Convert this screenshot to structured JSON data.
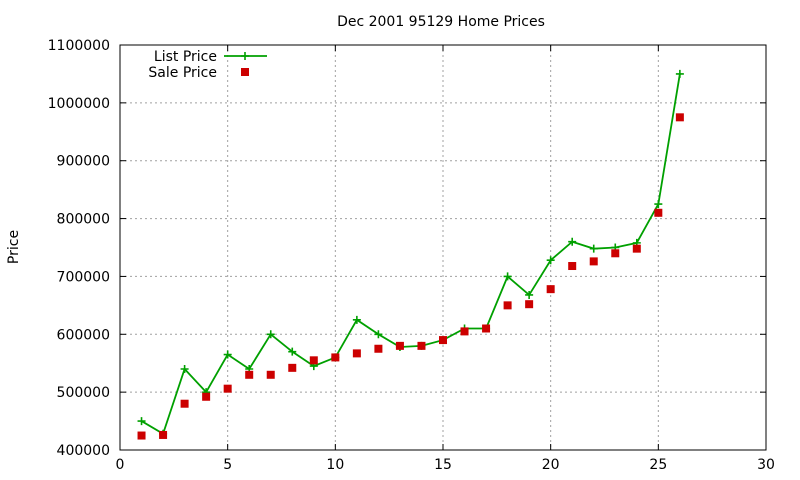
{
  "chart_data": {
    "type": "line",
    "title": "Dec 2001 95129 Home Prices",
    "xlabel": "",
    "ylabel": "Price",
    "xlim": [
      0,
      30
    ],
    "ylim": [
      400000,
      1100000
    ],
    "xticks": [
      0,
      5,
      10,
      15,
      20,
      25,
      30
    ],
    "yticks": [
      400000,
      500000,
      600000,
      700000,
      800000,
      900000,
      1000000,
      1100000
    ],
    "grid": true,
    "legend_position": "top-left",
    "series": [
      {
        "name": "List Price",
        "style": "linespoints",
        "marker": "plus",
        "color": "#00a000",
        "x": [
          1,
          2,
          3,
          4,
          5,
          6,
          7,
          8,
          9,
          10,
          11,
          12,
          13,
          14,
          15,
          16,
          17,
          18,
          19,
          20,
          21,
          22,
          23,
          24,
          25,
          26
        ],
        "y": [
          450000,
          428000,
          540000,
          500000,
          565000,
          540000,
          600000,
          570000,
          545000,
          560000,
          625000,
          600000,
          578000,
          580000,
          590000,
          610000,
          610000,
          700000,
          668000,
          728000,
          760000,
          748000,
          750000,
          758000,
          825000,
          1050000
        ]
      },
      {
        "name": "Sale Price",
        "style": "points",
        "marker": "square",
        "color": "#cc0000",
        "x": [
          1,
          2,
          3,
          4,
          5,
          6,
          7,
          8,
          9,
          10,
          11,
          12,
          13,
          14,
          15,
          16,
          17,
          18,
          19,
          20,
          21,
          22,
          23,
          24,
          25,
          26
        ],
        "y": [
          425000,
          426000,
          480000,
          492000,
          506000,
          530000,
          530000,
          542000,
          555000,
          560000,
          567000,
          575000,
          580000,
          580000,
          590000,
          605000,
          610000,
          650000,
          652000,
          678000,
          718000,
          726000,
          740000,
          748000,
          810000,
          975000
        ]
      }
    ]
  }
}
